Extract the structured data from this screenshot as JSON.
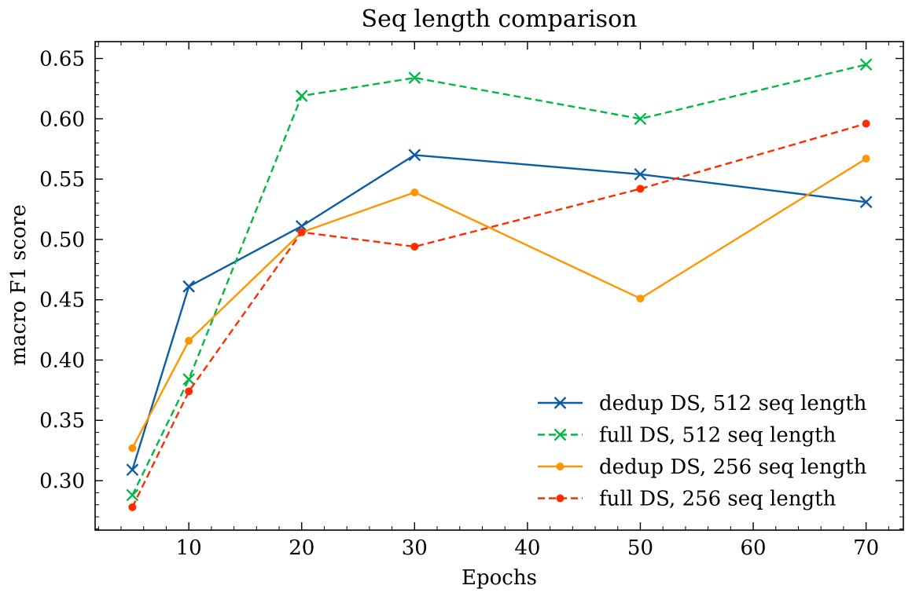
{
  "chart_data": {
    "type": "line",
    "title": "Seq length comparison",
    "xlabel": "Epochs",
    "ylabel": "macro F1 score",
    "xlim": [
      1.7,
      73.3
    ],
    "ylim": [
      0.259,
      0.664
    ],
    "xticks": [
      10,
      20,
      30,
      40,
      50,
      60,
      70
    ],
    "xtick_labels": [
      "10",
      "20",
      "30",
      "40",
      "50",
      "60",
      "70"
    ],
    "yticks": [
      0.3,
      0.35,
      0.4,
      0.45,
      0.5,
      0.55,
      0.6,
      0.65
    ],
    "ytick_labels": [
      "0.30",
      "0.35",
      "0.40",
      "0.45",
      "0.50",
      "0.55",
      "0.60",
      "0.65"
    ],
    "grid": false,
    "legend_position": "bottom-right",
    "series": [
      {
        "name": "dedup DS, 512 seq length",
        "color": "#0C5DA5",
        "line_style": "solid",
        "marker": "x",
        "x": [
          5,
          10,
          20,
          30,
          50,
          70
        ],
        "y": [
          0.309,
          0.461,
          0.511,
          0.57,
          0.554,
          0.531
        ]
      },
      {
        "name": "full DS, 512 seq length",
        "color": "#00B945",
        "line_style": "dashed",
        "marker": "x",
        "x": [
          5,
          10,
          20,
          30,
          50,
          70
        ],
        "y": [
          0.288,
          0.384,
          0.619,
          0.634,
          0.6,
          0.645
        ]
      },
      {
        "name": "dedup DS, 256 seq length",
        "color": "#FF9500",
        "line_style": "solid",
        "marker": "dot",
        "x": [
          5,
          10,
          20,
          30,
          50,
          70
        ],
        "y": [
          0.327,
          0.416,
          0.506,
          0.539,
          0.451,
          0.567
        ]
      },
      {
        "name": "full DS, 256 seq length",
        "color": "#FF2C00",
        "line_style": "dashed",
        "marker": "dot",
        "x": [
          5,
          10,
          20,
          30,
          50,
          70
        ],
        "y": [
          0.278,
          0.374,
          0.506,
          0.494,
          0.542,
          0.596
        ]
      }
    ]
  }
}
